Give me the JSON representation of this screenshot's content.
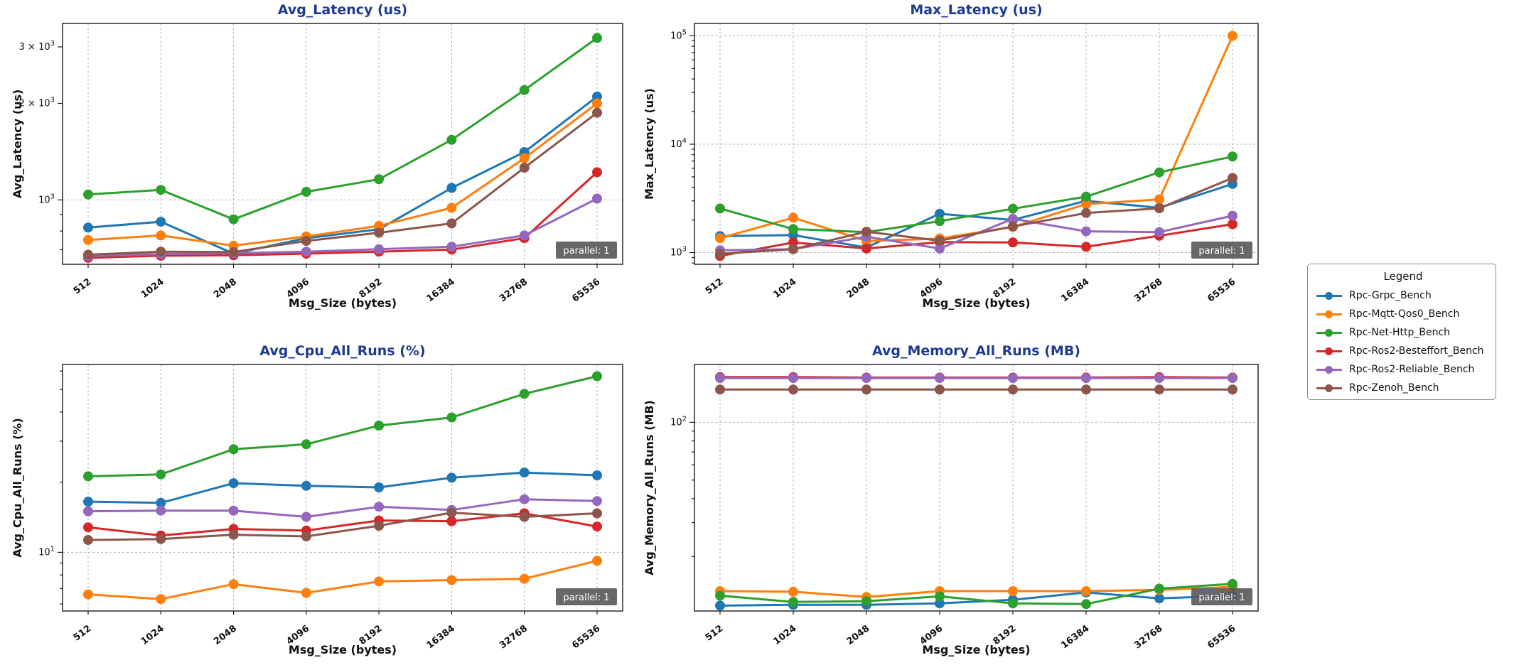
{
  "figure": {
    "background": "#ffffff",
    "title_color": "#1e3a93",
    "grid_color": "#b3b3b3",
    "badge": {
      "text": "parallel: 1",
      "bg": "#58585a",
      "fg": "#ffffff"
    }
  },
  "x_axis": {
    "label": "Msg_Size (bytes)",
    "categories": [
      512,
      1024,
      2048,
      4096,
      8192,
      16384,
      32768,
      65536
    ]
  },
  "legend": {
    "title": "Legend",
    "entries": [
      {
        "label": "Rpc-Grpc_Bench",
        "color": "#1f77b4"
      },
      {
        "label": "Rpc-Mqtt-Qos0_Bench",
        "color": "#ff7f0e"
      },
      {
        "label": "Rpc-Net-Http_Bench",
        "color": "#2ca02c"
      },
      {
        "label": "Rpc-Ros2-Besteffort_Bench",
        "color": "#d62728"
      },
      {
        "label": "Rpc-Ros2-Reliable_Bench",
        "color": "#9467bd"
      },
      {
        "label": "Rpc-Zenoh_Bench",
        "color": "#8c564b"
      }
    ]
  },
  "chart_data": [
    {
      "type": "line",
      "title": "Avg_Latency (us)",
      "ylabel": "Avg_Latency (us)",
      "xlabel": "Msg_Size (bytes)",
      "yscale": "log",
      "ylim": [
        630,
        3550
      ],
      "x_categories": [
        512,
        1024,
        2048,
        4096,
        8192,
        16384,
        32768,
        65536
      ],
      "yticks": [
        {
          "value": 1000,
          "pre": "",
          "exp": "3",
          "grid": true
        },
        {
          "value": 2000,
          "pre": "2 × ",
          "exp": "3",
          "grid": false
        },
        {
          "value": 3000,
          "pre": "3 × ",
          "exp": "3",
          "grid": false
        }
      ],
      "annotation": "parallel: 1",
      "series": [
        {
          "name": "Rpc-Grpc_Bench",
          "color": "#1f77b4",
          "values": [
            820,
            855,
            680,
            760,
            810,
            1090,
            1410,
            2100
          ]
        },
        {
          "name": "Rpc-Mqtt-Qos0_Bench",
          "color": "#ff7f0e",
          "values": [
            750,
            775,
            720,
            770,
            830,
            945,
            1350,
            2000
          ]
        },
        {
          "name": "Rpc-Net-Http_Bench",
          "color": "#2ca02c",
          "values": [
            1040,
            1075,
            870,
            1060,
            1160,
            1540,
            2200,
            3200
          ]
        },
        {
          "name": "Rpc-Ros2-Besteffort_Bench",
          "color": "#d62728",
          "values": [
            660,
            670,
            672,
            680,
            690,
            700,
            760,
            1220
          ]
        },
        {
          "name": "Rpc-Ros2-Reliable_Bench",
          "color": "#9467bd",
          "values": [
            668,
            678,
            682,
            690,
            702,
            715,
            775,
            1010
          ]
        },
        {
          "name": "Rpc-Zenoh_Bench",
          "color": "#8c564b",
          "values": [
            675,
            690,
            688,
            745,
            790,
            845,
            1260,
            1870
          ]
        }
      ]
    },
    {
      "type": "line",
      "title": "Max_Latency (us)",
      "ylabel": "Max_Latency (us)",
      "xlabel": "Msg_Size (bytes)",
      "yscale": "log",
      "ylim": [
        780,
        130000
      ],
      "x_categories": [
        512,
        1024,
        2048,
        4096,
        8192,
        16384,
        32768,
        65536
      ],
      "yticks": [
        {
          "value": 1000,
          "pre": "",
          "exp": "3",
          "grid": true
        },
        {
          "value": 10000,
          "pre": "",
          "exp": "4",
          "grid": true
        },
        {
          "value": 100000,
          "pre": "",
          "exp": "5",
          "grid": true
        }
      ],
      "annotation": "parallel: 1",
      "series": [
        {
          "name": "Rpc-Grpc_Bench",
          "color": "#1f77b4",
          "values": [
            1420,
            1450,
            1115,
            2280,
            2000,
            3000,
            2590,
            4300
          ]
        },
        {
          "name": "Rpc-Mqtt-Qos0_Bench",
          "color": "#ff7f0e",
          "values": [
            1360,
            2100,
            1280,
            1350,
            1725,
            2800,
            3100,
            100000
          ]
        },
        {
          "name": "Rpc-Net-Http_Bench",
          "color": "#2ca02c",
          "values": [
            2550,
            1650,
            1545,
            1950,
            2540,
            3280,
            5500,
            7700
          ]
        },
        {
          "name": "Rpc-Ros2-Besteffort_Bench",
          "color": "#d62728",
          "values": [
            930,
            1240,
            1090,
            1250,
            1240,
            1130,
            1430,
            1830
          ]
        },
        {
          "name": "Rpc-Ros2-Reliable_Bench",
          "color": "#9467bd",
          "values": [
            1050,
            1075,
            1400,
            1090,
            2050,
            1570,
            1545,
            2190
          ]
        },
        {
          "name": "Rpc-Zenoh_Bench",
          "color": "#8c564b",
          "values": [
            975,
            1075,
            1560,
            1290,
            1740,
            2320,
            2560,
            4880
          ]
        }
      ]
    },
    {
      "type": "line",
      "title": "Avg_Cpu_All_Runs (%)",
      "ylabel": "Avg_Cpu_All_Runs (%)",
      "xlabel": "Msg_Size (bytes)",
      "yscale": "log",
      "ylim": [
        5.6,
        64
      ],
      "x_categories": [
        512,
        1024,
        2048,
        4096,
        8192,
        16384,
        32768,
        65536
      ],
      "yticks": [
        {
          "value": 10,
          "pre": "",
          "exp": "1",
          "grid": true
        }
      ],
      "annotation": "parallel: 1",
      "series": [
        {
          "name": "Rpc-Grpc_Bench",
          "color": "#1f77b4",
          "values": [
            16.5,
            16.3,
            19.8,
            19.3,
            19.0,
            20.9,
            22.0,
            21.4
          ]
        },
        {
          "name": "Rpc-Mqtt-Qos0_Bench",
          "color": "#ff7f0e",
          "values": [
            6.6,
            6.3,
            7.3,
            6.7,
            7.5,
            7.6,
            7.7,
            9.2
          ]
        },
        {
          "name": "Rpc-Net-Http_Bench",
          "color": "#2ca02c",
          "values": [
            21.2,
            21.6,
            27.7,
            29.1,
            35.0,
            37.9,
            47.9,
            57.0
          ]
        },
        {
          "name": "Rpc-Ros2-Besteffort_Bench",
          "color": "#d62728",
          "values": [
            12.8,
            11.8,
            12.6,
            12.4,
            13.7,
            13.6,
            14.7,
            12.9
          ]
        },
        {
          "name": "Rpc-Ros2-Reliable_Bench",
          "color": "#9467bd",
          "values": [
            15.0,
            15.1,
            15.1,
            14.2,
            15.7,
            15.2,
            16.9,
            16.6
          ]
        },
        {
          "name": "Rpc-Zenoh_Bench",
          "color": "#8c564b",
          "values": [
            11.3,
            11.4,
            11.9,
            11.7,
            13.0,
            14.8,
            14.2,
            14.7
          ]
        }
      ]
    },
    {
      "type": "line",
      "title": "Avg_Memory_All_Runs (MB)",
      "ylabel": "Avg_Memory_All_Runs (MB)",
      "xlabel": "Msg_Size (bytes)",
      "yscale": "log",
      "ylim": [
        10.4,
        200
      ],
      "x_categories": [
        512,
        1024,
        2048,
        4096,
        8192,
        16384,
        32768,
        65536
      ],
      "yticks": [
        {
          "value": 100,
          "pre": "",
          "exp": "2",
          "grid": true
        }
      ],
      "annotation": "parallel: 1",
      "series": [
        {
          "name": "Rpc-Grpc_Bench",
          "color": "#1f77b4",
          "values": [
            11.1,
            11.2,
            11.2,
            11.4,
            11.9,
            13.0,
            12.1,
            12.5
          ]
        },
        {
          "name": "Rpc-Mqtt-Qos0_Bench",
          "color": "#ff7f0e",
          "values": [
            13.2,
            13.1,
            12.3,
            13.2,
            13.2,
            13.2,
            13.4,
            13.9
          ]
        },
        {
          "name": "Rpc-Net-Http_Bench",
          "color": "#2ca02c",
          "values": [
            12.5,
            11.6,
            11.7,
            12.4,
            11.4,
            11.3,
            13.6,
            14.4
          ]
        },
        {
          "name": "Rpc-Ros2-Besteffort_Bench",
          "color": "#d62728",
          "values": [
            172,
            172,
            171,
            171,
            171,
            171,
            172,
            171
          ]
        },
        {
          "name": "Rpc-Ros2-Reliable_Bench",
          "color": "#9467bd",
          "values": [
            170,
            170,
            170,
            170,
            170,
            170,
            170,
            170
          ]
        },
        {
          "name": "Rpc-Zenoh_Bench",
          "color": "#8c564b",
          "values": [
            148,
            148,
            148,
            148,
            148,
            148,
            148,
            148
          ]
        }
      ]
    }
  ]
}
